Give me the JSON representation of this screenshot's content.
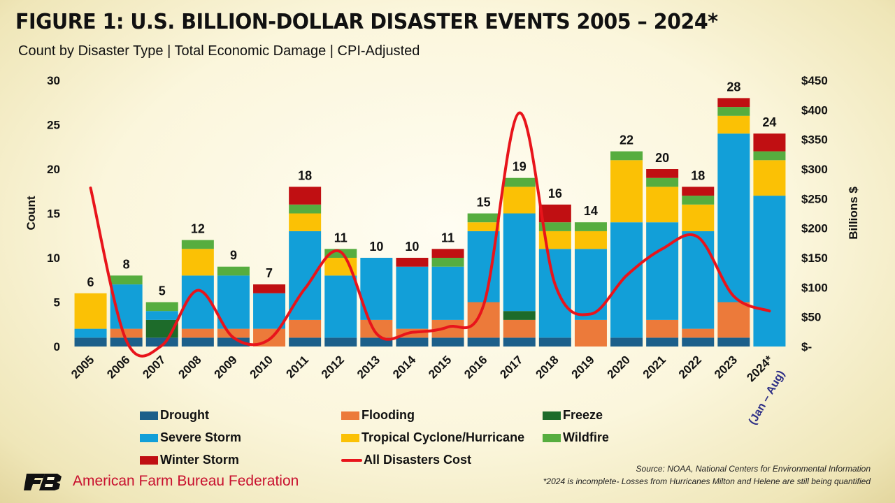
{
  "title": "FIGURE 1: U.S. BILLION-DOLLAR DISASTER EVENTS 2005 – 2024*",
  "subtitle": "Count by Disaster Type | Total Economic Damage | CPI-Adjusted",
  "source_line": "Source: NOAA, National Centers for Environmental Information",
  "footnote": "*2024 is incomplete- Losses from Hurricanes Milton and Helene are still being quantified",
  "organization": "American Farm Bureau Federation",
  "logo_text": "FB",
  "colors": {
    "Drought": "#1c5f8a",
    "Flooding": "#ec7a3a",
    "Freeze": "#1d6b2a",
    "Severe Storm": "#129fd8",
    "Tropical Cyclone/Hurricane": "#fbc105",
    "Wildfire": "#56ad3f",
    "Winter Storm": "#c00f12",
    "All Disasters Cost": "#e8141b",
    "brand_red": "#c8102e"
  },
  "chart_data": {
    "type": "bar",
    "stacked": true,
    "categories": [
      "2005",
      "2006",
      "2007",
      "2008",
      "2009",
      "2010",
      "2011",
      "2012",
      "2013",
      "2014",
      "2015",
      "2016",
      "2017",
      "2018",
      "2019",
      "2020",
      "2021",
      "2022",
      "2023",
      "2024*"
    ],
    "category_note": "(Jan – Aug)",
    "series": [
      {
        "name": "Drought",
        "values": [
          1,
          1,
          1,
          1,
          1,
          0,
          1,
          1,
          1,
          1,
          1,
          1,
          1,
          1,
          0,
          1,
          1,
          1,
          1,
          0
        ]
      },
      {
        "name": "Flooding",
        "values": [
          0,
          1,
          0,
          1,
          1,
          2,
          2,
          0,
          2,
          1,
          2,
          4,
          2,
          0,
          3,
          0,
          2,
          1,
          4,
          0
        ]
      },
      {
        "name": "Freeze",
        "values": [
          0,
          0,
          2,
          0,
          0,
          0,
          0,
          0,
          0,
          0,
          0,
          0,
          1,
          0,
          0,
          0,
          0,
          0,
          0,
          0
        ]
      },
      {
        "name": "Severe Storm",
        "values": [
          1,
          5,
          1,
          6,
          6,
          4,
          10,
          7,
          7,
          7,
          6,
          8,
          11,
          10,
          8,
          13,
          11,
          11,
          19,
          17
        ]
      },
      {
        "name": "Tropical Cyclone/Hurricane",
        "values": [
          4,
          0,
          0,
          3,
          0,
          0,
          2,
          2,
          0,
          0,
          0,
          1,
          3,
          2,
          2,
          7,
          4,
          3,
          2,
          4
        ]
      },
      {
        "name": "Wildfire",
        "values": [
          0,
          1,
          1,
          1,
          1,
          0,
          1,
          1,
          0,
          0,
          1,
          1,
          1,
          1,
          1,
          1,
          1,
          1,
          1,
          1
        ]
      },
      {
        "name": "Winter Storm",
        "values": [
          0,
          0,
          0,
          0,
          0,
          1,
          2,
          0,
          0,
          1,
          1,
          0,
          0,
          2,
          0,
          0,
          1,
          1,
          1,
          2
        ]
      }
    ],
    "totals": [
      6,
      8,
      5,
      12,
      9,
      7,
      18,
      11,
      10,
      10,
      11,
      15,
      19,
      16,
      14,
      22,
      20,
      18,
      28,
      24
    ],
    "line_series": {
      "name": "All Disasters Cost",
      "axis": "right",
      "unit": "Billions $",
      "values": [
        268,
        10,
        2,
        95,
        15,
        12,
        98,
        160,
        22,
        24,
        33,
        70,
        395,
        105,
        55,
        120,
        165,
        185,
        85,
        60
      ]
    },
    "ylabel": "Count",
    "y2label": "Billions $",
    "ylim": [
      0,
      30
    ],
    "y2lim": [
      0,
      450
    ],
    "yticks": [
      "0",
      "5",
      "10",
      "15",
      "20",
      "25",
      "30"
    ],
    "y2ticks": [
      "$-",
      "$50",
      "$100",
      "$150",
      "$200",
      "$250",
      "$300",
      "$350",
      "$400",
      "$450"
    ],
    "legend_position": "bottom",
    "grid": false
  }
}
